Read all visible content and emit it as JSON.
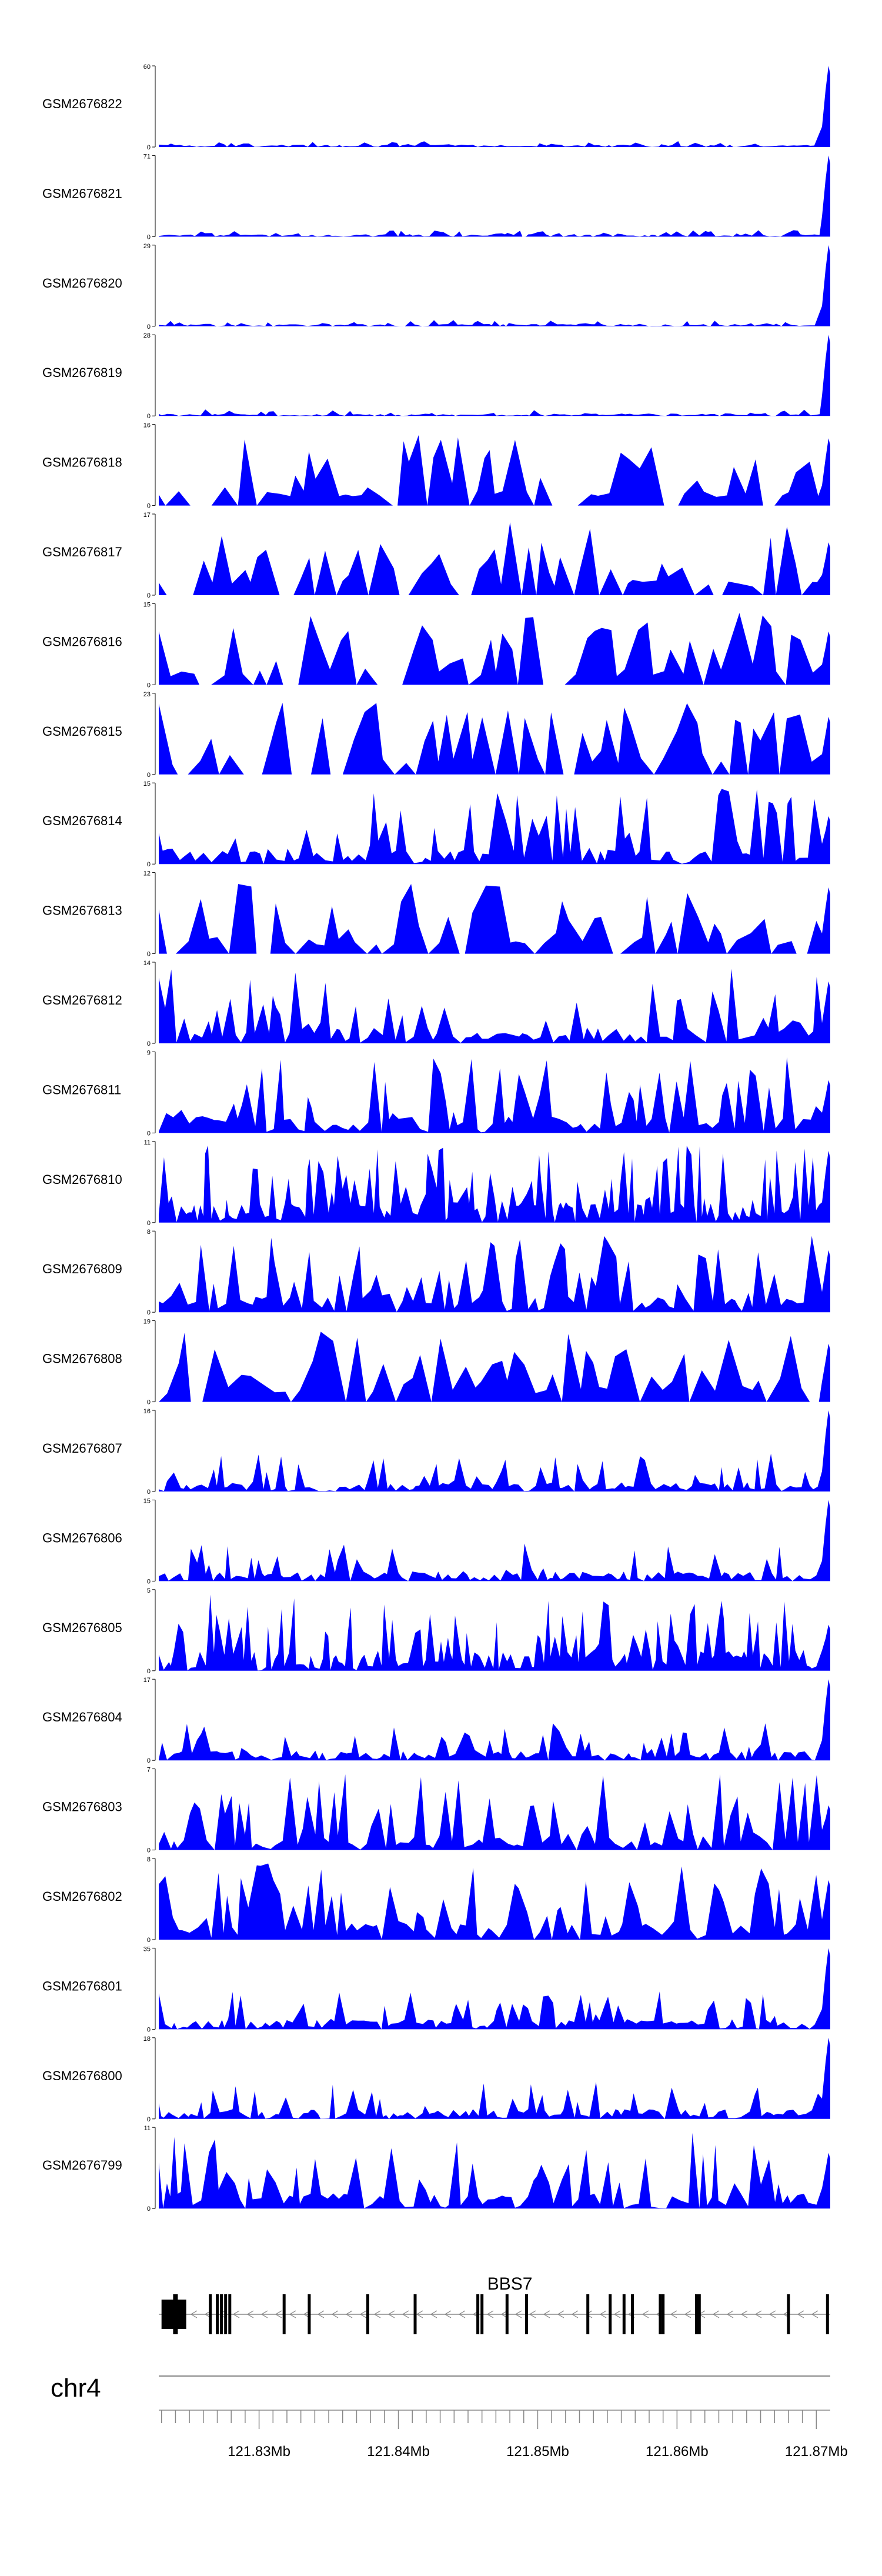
{
  "colors": {
    "signal": "#0000ff",
    "axis": "#000000",
    "gene": "#000000",
    "intron": "#888888",
    "ideogram": "#888888"
  },
  "chart_data": {
    "type": "area",
    "x_range_mb": [
      121.8228,
      121.871
    ],
    "tracks": [
      {
        "name": "GSM2676822",
        "ymax": "60",
        "ymin": "0",
        "scale": 60,
        "profile": "tail"
      },
      {
        "name": "GSM2676821",
        "ymax": "71",
        "ymin": "0",
        "scale": 71,
        "profile": "tail"
      },
      {
        "name": "GSM2676820",
        "ymax": "29",
        "ymin": "0",
        "scale": 29,
        "profile": "tail"
      },
      {
        "name": "GSM2676819",
        "ymax": "28",
        "ymin": "0",
        "scale": 28,
        "profile": "tail"
      },
      {
        "name": "GSM2676818",
        "ymax": "16",
        "ymin": "0",
        "scale": 16,
        "profile": "sparse"
      },
      {
        "name": "GSM2676817",
        "ymax": "17",
        "ymin": "0",
        "scale": 17,
        "profile": "sparse"
      },
      {
        "name": "GSM2676816",
        "ymax": "15",
        "ymin": "0",
        "scale": 15,
        "profile": "sparse"
      },
      {
        "name": "GSM2676815",
        "ymax": "23",
        "ymin": "0",
        "scale": 23,
        "profile": "sparse"
      },
      {
        "name": "GSM2676814",
        "ymax": "15",
        "ymin": "0",
        "scale": 15,
        "profile": "medium"
      },
      {
        "name": "GSM2676813",
        "ymax": "12",
        "ymin": "0",
        "scale": 12,
        "profile": "sparse"
      },
      {
        "name": "GSM2676812",
        "ymax": "14",
        "ymin": "0",
        "scale": 14,
        "profile": "medium"
      },
      {
        "name": "GSM2676811",
        "ymax": "9",
        "ymin": "0",
        "scale": 9,
        "profile": "medium"
      },
      {
        "name": "GSM2676810",
        "ymax": "11",
        "ymin": "0",
        "scale": 11,
        "profile": "dense"
      },
      {
        "name": "GSM2676809",
        "ymax": "8",
        "ymin": "0",
        "scale": 8,
        "profile": "medium"
      },
      {
        "name": "GSM2676808",
        "ymax": "19",
        "ymin": "0",
        "scale": 19,
        "profile": "sparse"
      },
      {
        "name": "GSM2676807",
        "ymax": "16",
        "ymin": "0",
        "scale": 16,
        "profile": "tailDense"
      },
      {
        "name": "GSM2676806",
        "ymax": "15",
        "ymin": "0",
        "scale": 15,
        "profile": "tailDense"
      },
      {
        "name": "GSM2676805",
        "ymax": "5",
        "ymin": "0",
        "scale": 5,
        "profile": "dense"
      },
      {
        "name": "GSM2676804",
        "ymax": "17",
        "ymin": "0",
        "scale": 17,
        "profile": "tailDense"
      },
      {
        "name": "GSM2676803",
        "ymax": "7",
        "ymin": "0",
        "scale": 7,
        "profile": "medium"
      },
      {
        "name": "GSM2676802",
        "ymax": "8",
        "ymin": "0",
        "scale": 8,
        "profile": "medium"
      },
      {
        "name": "GSM2676801",
        "ymax": "35",
        "ymin": "0",
        "scale": 35,
        "profile": "tailDense"
      },
      {
        "name": "GSM2676800",
        "ymax": "18",
        "ymin": "0",
        "scale": 18,
        "profile": "tailDense"
      },
      {
        "name": "GSM2676799",
        "ymax": "11",
        "ymin": "0",
        "scale": 11,
        "profile": "medium"
      }
    ],
    "gene": {
      "name": "BBS7",
      "strand": "-",
      "start_mb": 121.8228,
      "end_mb": 121.871,
      "exons_mb": [
        121.823,
        121.824,
        121.8265,
        121.827,
        121.8273,
        121.8276,
        121.8279,
        121.8318,
        121.8336,
        121.8378,
        121.8412,
        121.8457,
        121.846,
        121.8478,
        121.8492,
        121.8536,
        121.8552,
        121.8562,
        121.8568,
        121.8588,
        121.859,
        121.8614,
        121.8616,
        121.868,
        121.8708
      ]
    },
    "chromosome": "chr4",
    "axis": {
      "ticks_mb": [
        121.823,
        121.824,
        121.825,
        121.826,
        121.827,
        121.828,
        121.829,
        121.83,
        121.831,
        121.832,
        121.833,
        121.834,
        121.835,
        121.836,
        121.837,
        121.838,
        121.839,
        121.84,
        121.841,
        121.842,
        121.843,
        121.844,
        121.845,
        121.846,
        121.847,
        121.848,
        121.849,
        121.85,
        121.851,
        121.852,
        121.853,
        121.854,
        121.855,
        121.856,
        121.857,
        121.858,
        121.859,
        121.86,
        121.861,
        121.862,
        121.863,
        121.864,
        121.865,
        121.866,
        121.867,
        121.868,
        121.869,
        121.87
      ],
      "labels": [
        {
          "mb": 121.83,
          "text": "121.83Mb"
        },
        {
          "mb": 121.84,
          "text": "121.84Mb"
        },
        {
          "mb": 121.85,
          "text": "121.85Mb"
        },
        {
          "mb": 121.86,
          "text": "121.86Mb"
        },
        {
          "mb": 121.87,
          "text": "121.87Mb"
        }
      ]
    }
  }
}
